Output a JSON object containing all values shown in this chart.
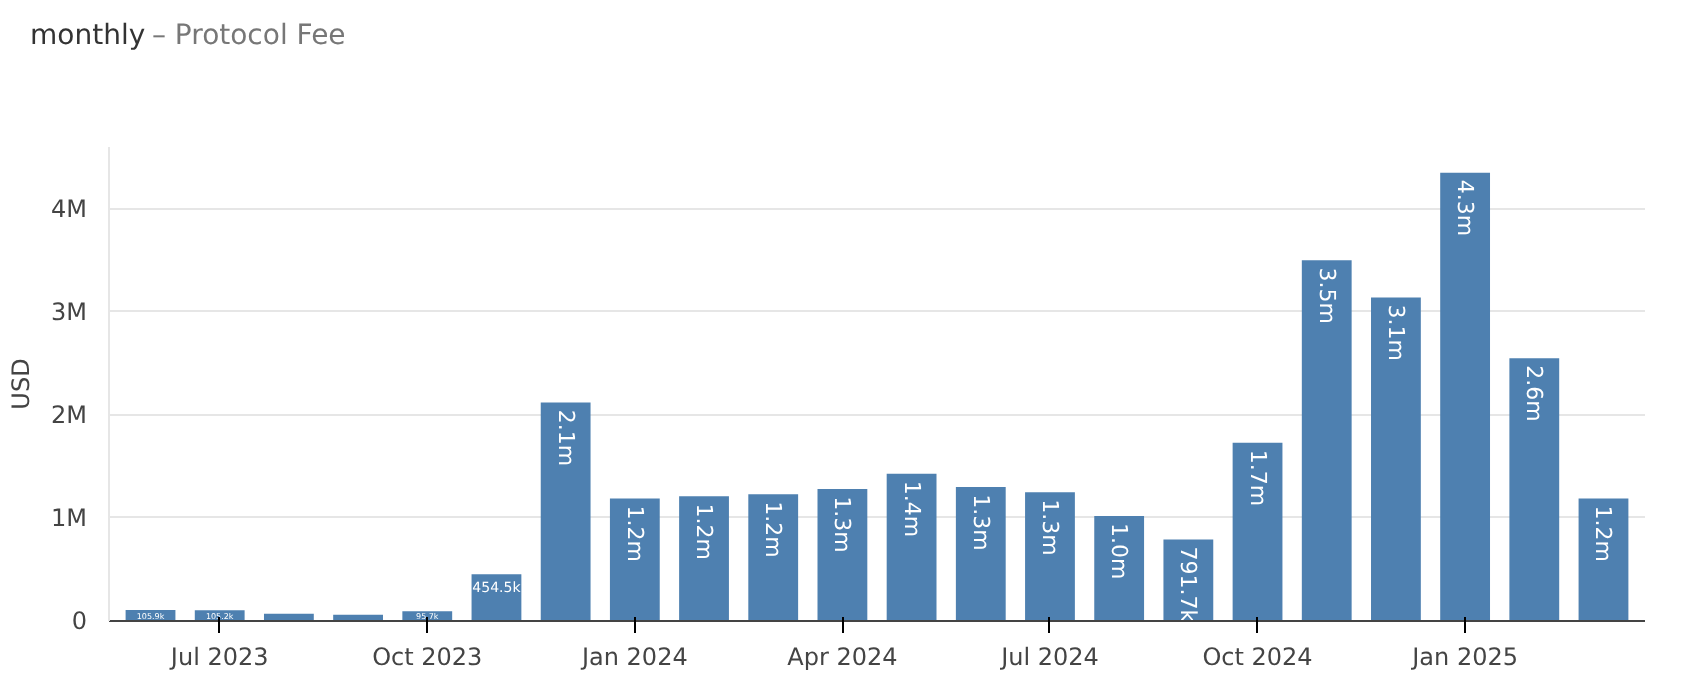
{
  "chart_data": {
    "type": "bar",
    "title": "monthly",
    "subtitle": "– Protocol Fee",
    "ylabel": "USD",
    "categories": [
      null,
      "Jul 2023",
      null,
      null,
      "Oct 2023",
      null,
      null,
      "Jan 2024",
      null,
      null,
      "Apr 2024",
      null,
      null,
      "Jul 2024",
      null,
      null,
      "Oct 2024",
      null,
      null,
      "Jan 2025",
      null,
      null
    ],
    "values": [
      105900,
      105200,
      70000,
      60000,
      95700,
      454500,
      2120000,
      1190000,
      1210000,
      1230000,
      1280000,
      1430000,
      1300000,
      1250000,
      1020000,
      791700,
      1730000,
      3500000,
      3140000,
      4350000,
      2550000,
      1190000
    ],
    "value_labels": [
      "105.9k",
      "105.2k",
      null,
      null,
      "95.7k",
      "454.5k",
      "2.1m",
      "1.2m",
      "1.2m",
      "1.2m",
      "1.3m",
      "1.4m",
      "1.3m",
      "1.3m",
      "1.0m",
      "791.7k",
      "1.7m",
      "3.5m",
      "3.1m",
      "4.3m",
      "2.6m",
      "1.2m"
    ],
    "color": "#4e80b0",
    "ylim": [
      0,
      4600000
    ],
    "yticks": [
      0,
      {
        "value": 1000000,
        "label": "1M"
      },
      {
        "value": 2000000,
        "label": "2M"
      },
      {
        "value": 3000000,
        "label": "3M"
      },
      {
        "value": 4000000,
        "label": "4M"
      }
    ],
    "grid": "y"
  }
}
